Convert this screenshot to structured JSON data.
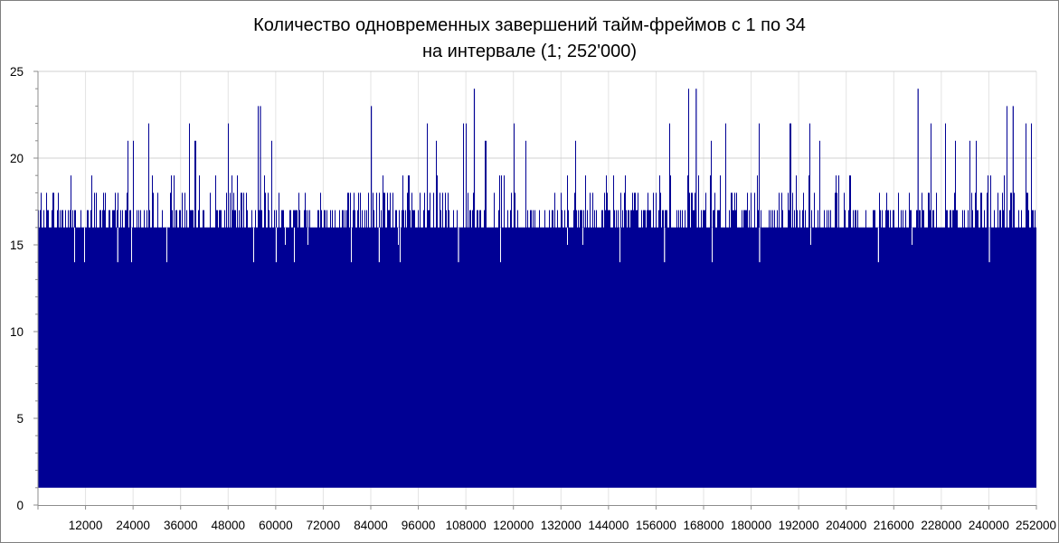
{
  "chart_data": {
    "type": "bar",
    "title_lines": [
      "Количество одновременных завершений тайм-фреймов с 1 по 34",
      "на интервале (1; 252'000)"
    ],
    "xlabel": "",
    "ylabel": "",
    "xlim": [
      0,
      252000
    ],
    "ylim": [
      0,
      25
    ],
    "y_ticks": [
      0,
      5,
      10,
      15,
      20,
      25
    ],
    "x_ticks": [
      12000,
      24000,
      36000,
      48000,
      60000,
      72000,
      84000,
      96000,
      108000,
      120000,
      132000,
      144000,
      156000,
      168000,
      180000,
      192000,
      204000,
      216000,
      228000,
      240000,
      252000
    ],
    "grid": true,
    "legend": "none",
    "series_color": "#000094",
    "baseline_min": 1,
    "upper_envelope": {
      "description_values": "max count per x-bin",
      "x": [
        1000,
        6000,
        12000,
        18000,
        22000,
        28000,
        36000,
        42000,
        48000,
        54000,
        56000,
        60000,
        66000,
        72000,
        80000,
        84000,
        90000,
        96000,
        102000,
        108000,
        110000,
        114000,
        120000,
        126000,
        132000,
        138000,
        144000,
        150000,
        156000,
        162000,
        166000,
        170000,
        174000,
        180000,
        186000,
        192000,
        198000,
        204000,
        210000,
        216000,
        222000,
        228000,
        234000,
        240000,
        246000,
        250000
      ],
      "y": [
        17,
        20,
        21,
        21,
        21,
        22,
        22,
        21,
        22,
        21,
        23,
        21,
        22,
        21,
        21,
        23,
        21,
        22,
        21,
        22,
        24,
        21,
        22,
        21,
        22,
        21,
        22,
        21,
        21,
        22,
        24,
        21,
        22,
        22,
        21,
        22,
        21,
        22,
        21,
        22,
        24,
        22,
        21,
        21,
        23,
        22
      ]
    },
    "typical_band": [
      16,
      18
    ],
    "notable_spikes": [
      {
        "x": 110000,
        "y": 24
      },
      {
        "x": 166000,
        "y": 24
      },
      {
        "x": 222000,
        "y": 24
      },
      {
        "x": 56000,
        "y": 23
      },
      {
        "x": 84000,
        "y": 23
      },
      {
        "x": 246000,
        "y": 23
      }
    ],
    "notable_dips": [
      {
        "x": 20000,
        "y": 14
      },
      {
        "x": 60000,
        "y": 14
      },
      {
        "x": 86000,
        "y": 14
      },
      {
        "x": 106000,
        "y": 14
      },
      {
        "x": 158000,
        "y": 14
      },
      {
        "x": 182000,
        "y": 14
      },
      {
        "x": 212000,
        "y": 14
      },
      {
        "x": 240000,
        "y": 14
      }
    ]
  }
}
